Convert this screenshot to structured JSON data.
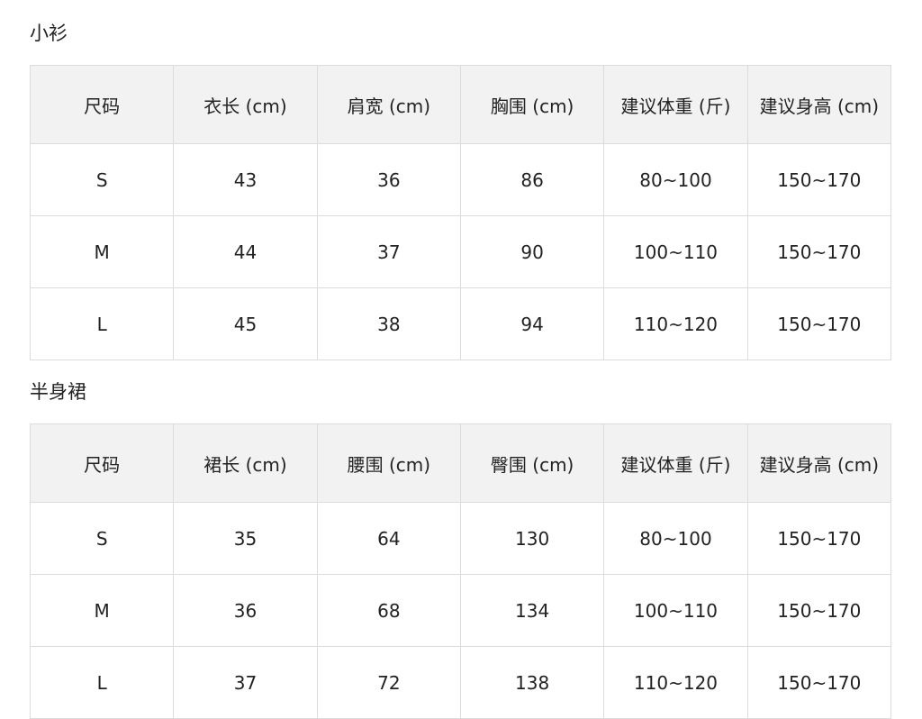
{
  "sections": [
    {
      "title": "小衫",
      "headers": [
        "尺码",
        "衣长 (cm)",
        "肩宽 (cm)",
        "胸围 (cm)",
        "建议体重 (斤)",
        "建议身高 (cm)"
      ],
      "rows": [
        [
          "S",
          "43",
          "36",
          "86",
          "80~100",
          "150~170"
        ],
        [
          "M",
          "44",
          "37",
          "90",
          "100~110",
          "150~170"
        ],
        [
          "L",
          "45",
          "38",
          "94",
          "110~120",
          "150~170"
        ]
      ]
    },
    {
      "title": "半身裙",
      "headers": [
        "尺码",
        "裙长 (cm)",
        "腰围 (cm)",
        "臀围 (cm)",
        "建议体重 (斤)",
        "建议身高 (cm)"
      ],
      "rows": [
        [
          "S",
          "35",
          "64",
          "130",
          "80~100",
          "150~170"
        ],
        [
          "M",
          "36",
          "68",
          "134",
          "100~110",
          "150~170"
        ],
        [
          "L",
          "37",
          "72",
          "138",
          "110~120",
          "150~170"
        ]
      ]
    }
  ]
}
